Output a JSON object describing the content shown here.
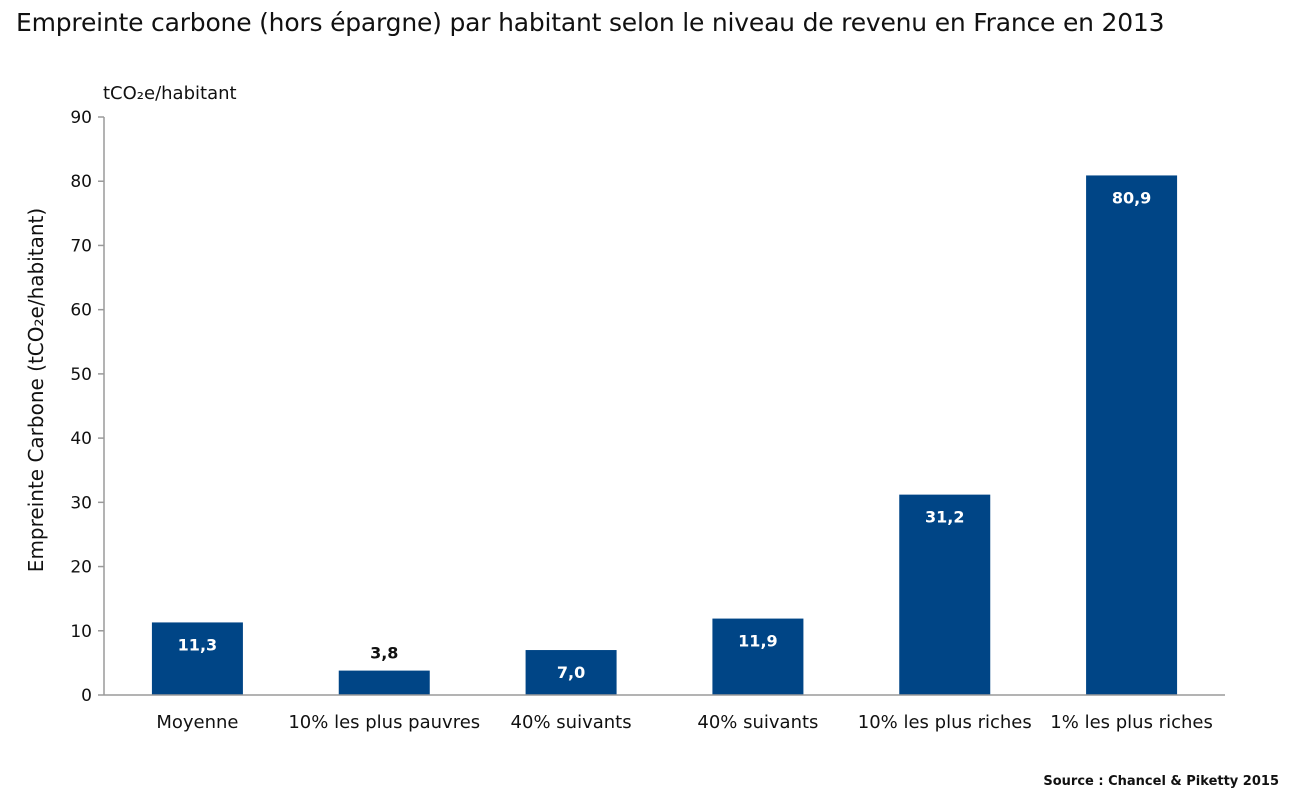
{
  "chart_data": {
    "type": "bar",
    "title": "Empreinte carbone (hors épargne) par habitant selon le niveau de revenu en France en 2013",
    "unit_label": "tCO₂e/habitant",
    "ylabel": "Empreinte Carbone (tCO₂e/habitant)",
    "xlabel": "",
    "ylim": [
      0,
      90
    ],
    "yticks": [
      0,
      10,
      20,
      30,
      40,
      50,
      60,
      70,
      80,
      90
    ],
    "categories": [
      "Moyenne",
      "10% les plus pauvres",
      "40% suivants",
      "40% suivants",
      "10% les plus riches",
      "1% les plus riches"
    ],
    "values": [
      11.3,
      3.8,
      7.0,
      11.9,
      31.2,
      80.9
    ],
    "data_labels": [
      "11,3",
      "3,8",
      "7,0",
      "11,9",
      "31,2",
      "80,9"
    ],
    "bar_color": "#004586",
    "axis_color": "#9a9a9a",
    "grid": false,
    "source": "Source : Chancel & Piketty 2015"
  }
}
